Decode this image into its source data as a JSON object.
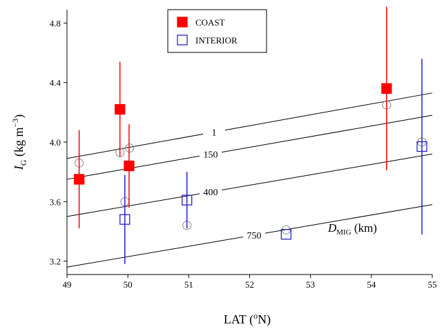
{
  "chart_data": {
    "type": "scatter",
    "xlabel": [
      "LAT (",
      "o",
      "N)"
    ],
    "ylabel": [
      "I",
      "G",
      " (kg m",
      "−3",
      ")"
    ],
    "xlim": [
      49,
      55
    ],
    "ylim": [
      3.11,
      4.89
    ],
    "xticks": [
      49,
      50,
      51,
      52,
      53,
      54,
      55
    ],
    "yticks": [
      3.2,
      3.6,
      {
        "value": 4,
        "label": "4.0"
      },
      4.4,
      4.8
    ],
    "legend": "top-center",
    "series": [
      {
        "name": "COAST",
        "color": "#ff0000",
        "filled": true,
        "x": [
          49.2,
          49.87,
          50.02,
          54.25
        ],
        "values": [
          3.75,
          4.22,
          3.84,
          4.36
        ],
        "errors": [
          0.33,
          0.32,
          0.28,
          0.55
        ]
      },
      {
        "name": "INTERIOR",
        "color": "#2222cc",
        "filled": false,
        "x": [
          49.95,
          50.97,
          52.6,
          54.83
        ],
        "values": [
          3.48,
          3.61,
          3.38,
          3.97
        ],
        "errors": [
          0.3,
          0.19,
          null,
          0.59
        ]
      }
    ],
    "reference_points": {
      "color": "#888888",
      "x": [
        49.2,
        49.87,
        50.03,
        49.95,
        50.97,
        52.6,
        54.25,
        54.83
      ],
      "values": [
        3.86,
        3.93,
        3.96,
        3.6,
        3.44,
        3.41,
        4.25,
        4.0
      ]
    },
    "lines": [
      {
        "label": "1",
        "x": [
          49,
          55
        ],
        "values": [
          3.89,
          4.33
        ]
      },
      {
        "label": "150",
        "x": [
          49,
          55
        ],
        "values": [
          3.75,
          4.18
        ]
      },
      {
        "label": "400",
        "x": [
          49,
          55
        ],
        "values": [
          3.5,
          3.92
        ]
      },
      {
        "label": "750",
        "x": [
          49,
          55
        ],
        "values": [
          3.16,
          3.58
        ]
      }
    ],
    "annotation": [
      "D",
      "MIG",
      " (km)"
    ]
  }
}
